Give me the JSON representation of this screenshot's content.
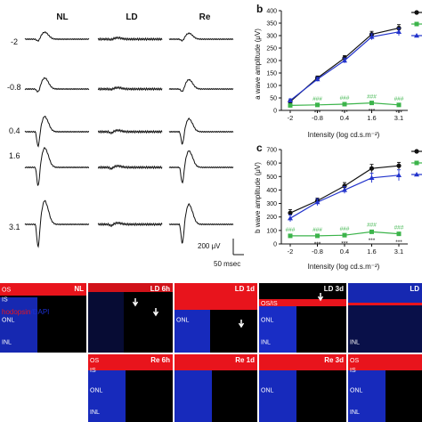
{
  "erg": {
    "columns": [
      "NL",
      "LD",
      "Re"
    ],
    "rows": [
      "-2",
      "-0.8",
      "0.4",
      "1.6",
      "3.1"
    ],
    "scale_amplitude": "200 μV",
    "scale_time": "50 msec"
  },
  "colors": {
    "nl": "#111111",
    "ld": "#3cb44b",
    "re": "#2233cc",
    "red_stain": "#e8141c",
    "blue_stain": "#1a2fd0"
  },
  "chart_data": [
    {
      "type": "line",
      "panel_label": "b",
      "xlabel": "Intensity (log cd.s.m⁻²)",
      "ylabel": "a wave amplitude (μV)",
      "categories": [
        "-2",
        "-0.8",
        "0.4",
        "1.6",
        "3.1"
      ],
      "ylim": [
        0,
        400
      ],
      "yticks": [
        "0",
        "50",
        "100",
        "150",
        "200",
        "250",
        "300",
        "350",
        "400"
      ],
      "series": [
        {
          "values": [
            35,
            130,
            210,
            305,
            330
          ],
          "errors": [
            6,
            8,
            10,
            12,
            14
          ],
          "marker": "circle"
        },
        {
          "values": [
            20,
            22,
            25,
            30,
            22
          ],
          "errors": [
            2,
            3,
            3,
            4,
            3
          ],
          "marker": "square"
        },
        {
          "values": [
            40,
            125,
            200,
            295,
            315
          ],
          "errors": [
            6,
            8,
            10,
            12,
            15
          ],
          "marker": "triangle"
        }
      ],
      "annotations_upper": [
        "***",
        "***",
        "***",
        "***"
      ],
      "annotations_lower": [
        "###",
        "###",
        "###",
        "###"
      ]
    },
    {
      "type": "line",
      "panel_label": "c",
      "xlabel": "Intensity (log cd.s.m⁻²)",
      "ylabel": "b wave amplitude (μV)",
      "categories": [
        "-2",
        "-0.8",
        "0.4",
        "1.6",
        "3.1"
      ],
      "ylim": [
        0,
        700
      ],
      "yticks": [
        "0",
        "100",
        "200",
        "300",
        "400",
        "500",
        "600",
        "700"
      ],
      "series": [
        {
          "values": [
            230,
            320,
            430,
            560,
            580
          ],
          "errors": [
            25,
            20,
            25,
            30,
            25
          ],
          "marker": "circle"
        },
        {
          "values": [
            60,
            60,
            65,
            90,
            75
          ],
          "errors": [
            6,
            6,
            8,
            12,
            8
          ],
          "marker": "square"
        },
        {
          "values": [
            190,
            310,
            400,
            490,
            510
          ],
          "errors": [
            25,
            25,
            25,
            35,
            40
          ],
          "marker": "triangle"
        }
      ],
      "annotations_upper": [
        "***",
        "***",
        "***",
        "***"
      ],
      "annotations_lower": [
        "###",
        "###",
        "###",
        "###",
        "###"
      ]
    }
  ],
  "micrographs": {
    "row1": [
      {
        "label": "NL",
        "layers": [
          "OS",
          "IS",
          "ONL",
          "INL"
        ]
      },
      {
        "label": "LD 6h",
        "layers": []
      },
      {
        "label": "LD 1d",
        "layers": [
          "ONL"
        ]
      },
      {
        "label": "LD 3d",
        "layers": [
          "OS/IS",
          "ONL",
          "INL"
        ]
      },
      {
        "label": "LD",
        "layers": [
          "INL"
        ]
      }
    ],
    "row2": [
      {
        "label": "",
        "layers": []
      },
      {
        "label": "Re 6h",
        "layers": [
          "OS",
          "IS",
          "ONL",
          "INL"
        ]
      },
      {
        "label": "Re 1d",
        "layers": []
      },
      {
        "label": "Re 3d",
        "layers": [
          "ONL"
        ]
      },
      {
        "label": "",
        "layers": [
          "OS",
          "IS",
          "ONL",
          "INL"
        ]
      }
    ],
    "stain_legend_part1": "hodopsin",
    "stain_legend_part2": "/DAPI"
  }
}
